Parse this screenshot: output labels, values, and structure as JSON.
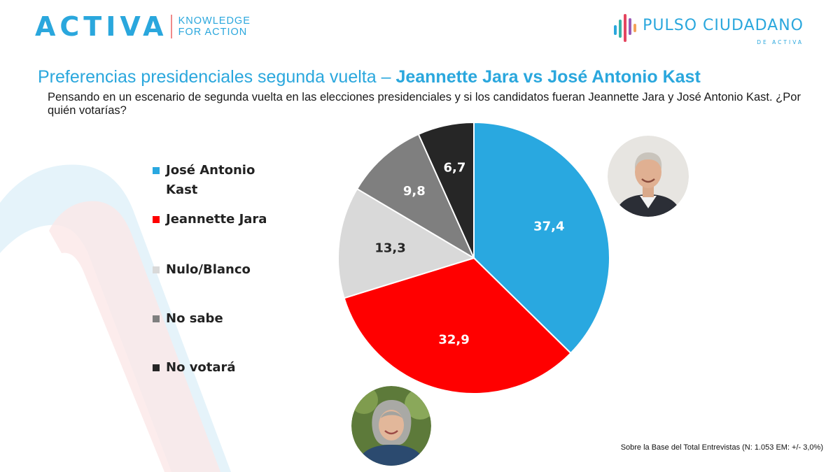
{
  "header": {
    "activa_logo": "ACTIVA",
    "activa_tagline_1": "KNOWLEDGE",
    "activa_tagline_2": "FOR ACTION",
    "pulso_logo": "PULSO CIUDADANO",
    "pulso_sub": "DE ACTIVA"
  },
  "title": {
    "prefix": "Preferencias presidenciales segunda vuelta – ",
    "strong": "Jeannette Jara vs José Antonio Kast"
  },
  "question": "Pensando en un escenario de segunda vuelta en las elecciones presidenciales y si los candidatos fueran Jeannette Jara y José Antonio Kast. ¿Por quién votarías?",
  "legend": {
    "items": [
      {
        "label": "José Antonio Kast",
        "color": "#29a8e0"
      },
      {
        "label": "Jeannette Jara",
        "color": "#ff0000"
      },
      {
        "label": "Nulo/Blanco",
        "color": "#d9d9d9"
      },
      {
        "label": "No sabe",
        "color": "#7f7f7f"
      },
      {
        "label": "No votará",
        "color": "#262626"
      }
    ]
  },
  "chart_data": {
    "type": "pie",
    "title": "Preferencias presidenciales segunda vuelta – Jeannette Jara vs José Antonio Kast",
    "categories": [
      "José Antonio Kast",
      "Jeannette Jara",
      "Nulo/Blanco",
      "No sabe",
      "No votará"
    ],
    "values": [
      37.4,
      32.9,
      13.3,
      9.8,
      6.7
    ],
    "labels": [
      "37,4",
      "32,9",
      "13,3",
      "9,8",
      "6,7"
    ],
    "colors": [
      "#29a8e0",
      "#ff0000",
      "#d9d9d9",
      "#7f7f7f",
      "#262626"
    ],
    "label_colors": [
      "#ffffff",
      "#ffffff",
      "#262626",
      "#ffffff",
      "#ffffff"
    ],
    "start": "12 o'clock, clockwise",
    "legend_position": "left"
  },
  "footnote": "Sobre la Base del Total Entrevistas (N: 1.053 EM: +/- 3,0%)",
  "colors": {
    "accent": "#2aa7dd",
    "brand_red": "#f08a8a"
  },
  "icons": [
    "activa-logo",
    "pulso-bars-icon",
    "kast-photo",
    "jara-photo"
  ]
}
